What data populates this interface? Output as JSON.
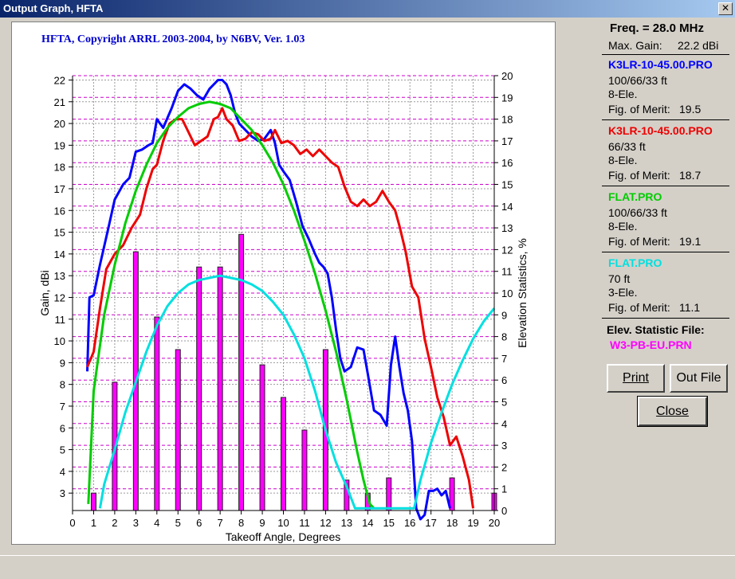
{
  "window": {
    "title": "Output Graph, HFTA",
    "close_glyph": "✕"
  },
  "graph": {
    "copyright": "HFTA, Copyright ARRL 2003-2004, by N6BV, Ver. 1.03"
  },
  "side": {
    "freq": "Freq. = 28.0 MHz",
    "max_gain_label": "Max. Gain:",
    "max_gain_value": "22.2 dBi",
    "antennas": [
      {
        "file": "K3LR-10-45.00.PRO",
        "color": "#0000ff",
        "heights": "100/66/33 ft",
        "elements": "8-Ele.",
        "fom_label": "Fig. of Merit:",
        "fom": "19.5"
      },
      {
        "file": "K3LR-10-45.00.PRO",
        "color": "#ee0000",
        "heights": "66/33 ft",
        "elements": "8-Ele.",
        "fom_label": "Fig. of Merit:",
        "fom": "18.7"
      },
      {
        "file": "FLAT.PRO",
        "color": "#00cc00",
        "heights": "100/66/33 ft",
        "elements": "8-Ele.",
        "fom_label": "Fig. of Merit:",
        "fom": "19.1"
      },
      {
        "file": "FLAT.PRO",
        "color": "#00e0e0",
        "heights": "70 ft",
        "elements": "3-Ele.",
        "fom_label": "Fig. of Merit:",
        "fom": "11.1"
      }
    ],
    "elev_label": "Elev. Statistic File:",
    "elev_file": "W3-PB-EU.PRN",
    "elev_color": "#ff00ff"
  },
  "buttons": {
    "print": "Print",
    "out_file": "Out File",
    "close": "Close"
  },
  "chart_data": {
    "type": "line",
    "title": "HFTA, Copyright ARRL 2003-2004, by N6BV, Ver. 1.03",
    "xlabel": "Takeoff Angle, Degrees",
    "ylabel": "Gain, dBi",
    "y2label": "Elevation Statistics, %",
    "xlim": [
      0,
      20
    ],
    "ylim": [
      2.2,
      22.2
    ],
    "y2lim": [
      0,
      20
    ],
    "x_ticks": [
      "0",
      "1",
      "2",
      "3",
      "4",
      "5",
      "6",
      "7",
      "8",
      "9",
      "10",
      "11",
      "12",
      "13",
      "14",
      "15",
      "16",
      "17",
      "18",
      "19",
      "20"
    ],
    "y_ticks": [
      "3",
      "4",
      "5",
      "6",
      "7",
      "8",
      "9",
      "10",
      "11",
      "12",
      "13",
      "14",
      "15",
      "16",
      "17",
      "18",
      "19",
      "20",
      "21",
      "22"
    ],
    "y2_ticks": [
      "0",
      "1",
      "2",
      "3",
      "4",
      "5",
      "6",
      "7",
      "8",
      "9",
      "10",
      "11",
      "12",
      "13",
      "14",
      "15",
      "16",
      "17",
      "18",
      "19",
      "20"
    ],
    "grid": true,
    "series": [
      {
        "name": "K3LR-10-45.00.PRO",
        "color": "#0000ff",
        "x": [
          0.7,
          0.8,
          1.0,
          1.3,
          1.7,
          2.0,
          2.4,
          2.7,
          3.0,
          3.3,
          3.6,
          3.8,
          4.0,
          4.3,
          4.7,
          5.0,
          5.3,
          5.6,
          5.9,
          6.2,
          6.5,
          6.9,
          7.1,
          7.3,
          7.5,
          7.7,
          7.9,
          8.2,
          8.5,
          8.8,
          9.1,
          9.4,
          9.6,
          9.8,
          10.0,
          10.3,
          10.6,
          10.9,
          11.2,
          11.5,
          11.7,
          11.9,
          12.1,
          12.3,
          12.5,
          12.7,
          12.9,
          13.2,
          13.5,
          13.8,
          14.0,
          14.3,
          14.6,
          14.9,
          15.1,
          15.3,
          15.5,
          15.7,
          15.9,
          16.1,
          16.3,
          16.5,
          16.7,
          16.9,
          17.1,
          17.3,
          17.5,
          17.7,
          17.9
        ],
        "y": [
          8.6,
          12.0,
          12.1,
          13.5,
          15.2,
          16.5,
          17.2,
          17.5,
          18.7,
          18.8,
          19.0,
          19.1,
          20.2,
          19.8,
          20.7,
          21.5,
          21.8,
          21.6,
          21.3,
          21.1,
          21.6,
          22.0,
          22.0,
          21.8,
          21.3,
          20.5,
          20.0,
          19.7,
          19.4,
          19.2,
          19.3,
          19.7,
          19.1,
          18.1,
          17.8,
          17.4,
          16.4,
          15.3,
          14.7,
          14.0,
          13.6,
          13.4,
          13.1,
          12.0,
          10.5,
          9.2,
          8.6,
          8.8,
          9.7,
          9.6,
          8.5,
          6.8,
          6.6,
          6.1,
          8.9,
          10.2,
          8.8,
          7.6,
          6.8,
          5.4,
          2.3,
          1.8,
          2.0,
          3.1,
          3.1,
          3.2,
          2.9,
          3.1,
          2.3
        ]
      },
      {
        "name": "K3LR-10-45.00.PRO",
        "color": "#ee0000",
        "x": [
          0.7,
          1.0,
          1.3,
          1.6,
          2.0,
          2.4,
          2.8,
          3.2,
          3.5,
          3.8,
          4.0,
          4.3,
          4.6,
          4.9,
          5.2,
          5.5,
          5.8,
          6.1,
          6.4,
          6.7,
          6.9,
          7.1,
          7.3,
          7.6,
          7.9,
          8.2,
          8.5,
          8.8,
          9.1,
          9.4,
          9.6,
          9.9,
          10.2,
          10.5,
          10.8,
          11.1,
          11.4,
          11.7,
          12.0,
          12.3,
          12.6,
          12.9,
          13.2,
          13.5,
          13.8,
          14.1,
          14.4,
          14.7,
          15.0,
          15.3,
          15.5,
          15.8,
          16.1,
          16.4,
          16.7,
          17.0,
          17.3,
          17.6,
          17.9,
          18.2,
          18.5,
          18.8,
          19.0
        ],
        "y": [
          8.8,
          9.5,
          11.5,
          13.3,
          14.0,
          14.4,
          15.2,
          15.8,
          17.0,
          17.9,
          18.1,
          19.2,
          20.0,
          20.2,
          20.2,
          19.6,
          19.0,
          19.2,
          19.4,
          20.2,
          20.3,
          20.7,
          20.2,
          19.9,
          19.2,
          19.3,
          19.6,
          19.5,
          19.2,
          19.3,
          19.7,
          19.1,
          19.2,
          19.0,
          18.6,
          18.8,
          18.5,
          18.8,
          18.5,
          18.2,
          18.0,
          17.1,
          16.4,
          16.2,
          16.5,
          16.2,
          16.4,
          16.9,
          16.4,
          16.0,
          15.3,
          14.1,
          12.5,
          12.0,
          10.1,
          8.8,
          7.4,
          6.5,
          5.2,
          5.6,
          4.7,
          3.6,
          2.3
        ]
      },
      {
        "name": "FLAT.PRO",
        "color": "#00cc00",
        "x": [
          0.75,
          1.0,
          1.5,
          2.0,
          2.5,
          3.0,
          3.5,
          4.0,
          4.5,
          5.0,
          5.5,
          6.0,
          6.5,
          7.0,
          7.5,
          8.0,
          8.5,
          9.0,
          9.5,
          10.0,
          10.5,
          11.0,
          11.5,
          12.0,
          12.5,
          13.0,
          13.5,
          13.8,
          14.1,
          14.3
        ],
        "y": [
          2.5,
          7.7,
          11.2,
          13.5,
          15.4,
          16.9,
          18.1,
          19.1,
          19.8,
          20.3,
          20.7,
          20.9,
          21.0,
          20.9,
          20.7,
          20.2,
          19.7,
          19.0,
          18.2,
          17.2,
          16.0,
          14.6,
          13.1,
          11.4,
          9.5,
          7.3,
          4.9,
          3.6,
          2.5,
          2.3
        ]
      },
      {
        "name": "FLAT.PRO",
        "color": "#00e0e0",
        "x": [
          1.3,
          1.5,
          2.0,
          2.5,
          3.0,
          3.5,
          4.0,
          4.5,
          5.0,
          5.5,
          6.0,
          6.5,
          7.0,
          7.5,
          8.0,
          8.5,
          9.0,
          9.5,
          10.0,
          10.5,
          11.0,
          11.5,
          12.0,
          12.5,
          13.0,
          13.4,
          16.2,
          16.5,
          17.0,
          17.5,
          18.0,
          18.5,
          19.0,
          19.5,
          20.0
        ],
        "y": [
          2.3,
          3.4,
          5.0,
          6.7,
          8.1,
          9.5,
          10.7,
          11.6,
          12.2,
          12.6,
          12.8,
          12.9,
          13.0,
          12.9,
          12.8,
          12.6,
          12.3,
          11.8,
          11.2,
          10.3,
          9.2,
          7.7,
          5.9,
          4.4,
          3.3,
          2.3,
          2.3,
          3.6,
          5.3,
          6.7,
          8.0,
          9.1,
          10.1,
          10.9,
          11.5
        ]
      }
    ],
    "elevation_statistics": {
      "name": "W3-PB-EU.PRN",
      "color": "#ff00ff",
      "x": [
        1,
        2,
        3,
        4,
        5,
        6,
        7,
        8,
        9,
        10,
        11,
        12,
        13,
        14,
        15,
        16,
        17,
        18,
        19,
        20
      ],
      "values": [
        0.8,
        5.9,
        11.9,
        8.9,
        7.4,
        11.2,
        11.2,
        12.7,
        6.7,
        5.2,
        3.7,
        7.4,
        1.4,
        0.8,
        1.5,
        0,
        0,
        1.5,
        0,
        0.8
      ]
    }
  }
}
